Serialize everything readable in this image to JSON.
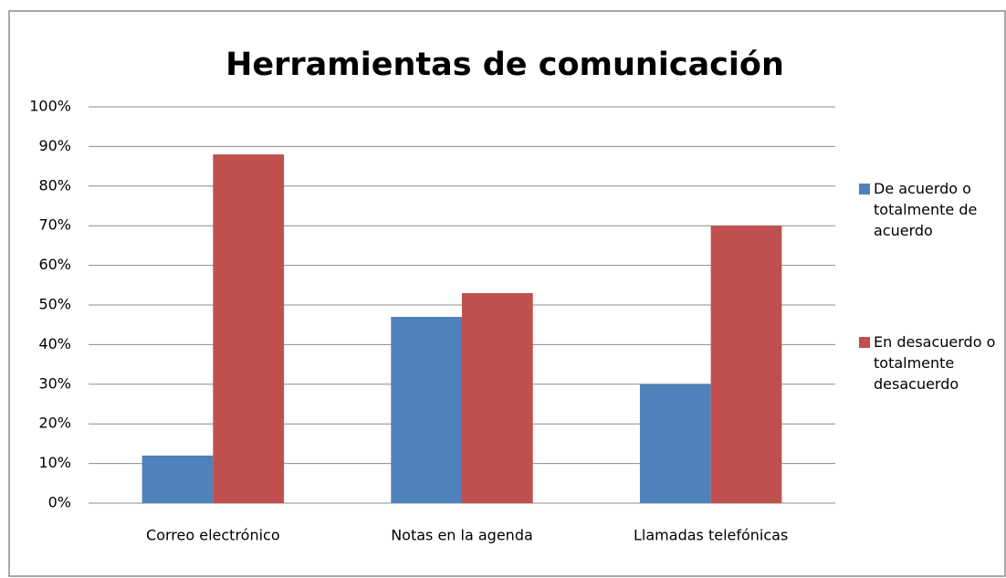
{
  "chart_data": {
    "type": "bar",
    "title": "Herramientas de comunicación",
    "categories": [
      "Correo electrónico",
      "Notas en la agenda",
      "Llamadas telefónicas"
    ],
    "series": [
      {
        "name": "De acuerdo o totalmente de acuerdo",
        "color": "#4f81bd",
        "values": [
          12,
          47,
          30
        ]
      },
      {
        "name": "En desacuerdo o totalmente desacuerdo",
        "color": "#c0504d",
        "values": [
          88,
          53,
          70
        ]
      }
    ],
    "ylim": [
      0,
      100
    ],
    "yticks": [
      {
        "value": 0,
        "label": "0%"
      },
      {
        "value": 10,
        "label": "10%"
      },
      {
        "value": 20,
        "label": "20%"
      },
      {
        "value": 30,
        "label": "30%"
      },
      {
        "value": 40,
        "label": "40%"
      },
      {
        "value": 50,
        "label": "50%"
      },
      {
        "value": 60,
        "label": "60%"
      },
      {
        "value": 70,
        "label": "70%"
      },
      {
        "value": 80,
        "label": "80%"
      },
      {
        "value": 90,
        "label": "90%"
      },
      {
        "value": 100,
        "label": "100%"
      }
    ],
    "grid": true,
    "legend": "right"
  }
}
